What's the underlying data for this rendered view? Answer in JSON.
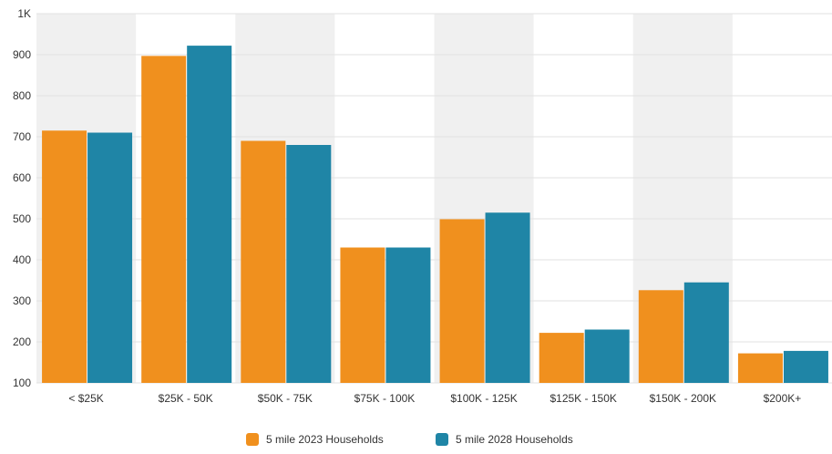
{
  "chart_data": {
    "type": "bar",
    "title": "",
    "xlabel": "",
    "ylabel": "",
    "categories": [
      "< $25K",
      "$25K - 50K",
      "$50K - 75K",
      "$75K - 100K",
      "$100K - 125K",
      "$125K - 150K",
      "$150K - 200K",
      "$200K+"
    ],
    "series": [
      {
        "name": "5 mile 2023 Households",
        "color": "#f0901e",
        "values": [
          715,
          897,
          690,
          430,
          499,
          222,
          326,
          172
        ]
      },
      {
        "name": "5 mile 2028 Households",
        "color": "#1f85a6",
        "values": [
          710,
          922,
          680,
          430,
          515,
          230,
          345,
          178
        ]
      }
    ],
    "ylim": [
      100,
      1000
    ],
    "yticks": [
      100,
      200,
      300,
      400,
      500,
      600,
      700,
      800,
      900,
      1000
    ],
    "ytick_labels": [
      "100",
      "200",
      "300",
      "400",
      "500",
      "600",
      "700",
      "800",
      "900",
      "1K"
    ],
    "grid": true,
    "alternating_band_color": "#f0f0f0",
    "legend_position": "bottom-center"
  }
}
